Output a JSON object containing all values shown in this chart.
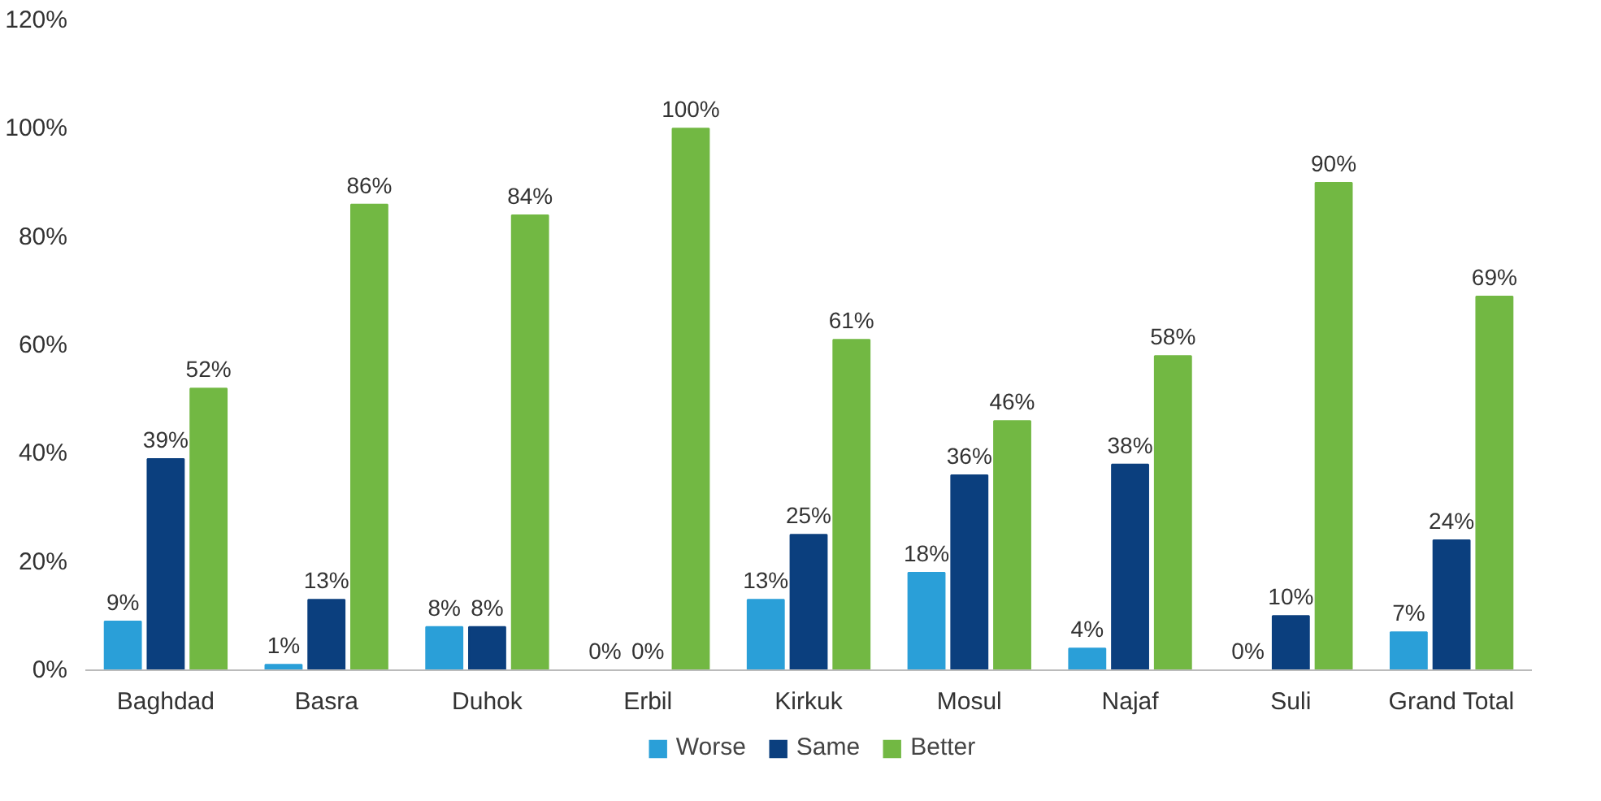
{
  "chart_data": {
    "type": "bar",
    "categories": [
      "Baghdad",
      "Basra",
      "Duhok",
      "Erbil",
      "Kirkuk",
      "Mosul",
      "Najaf",
      "Suli",
      "Grand Total"
    ],
    "series": [
      {
        "name": "Worse",
        "color": "#2a9fd8",
        "values": [
          9,
          1,
          8,
          0,
          13,
          18,
          4,
          0,
          7
        ],
        "value_labels": [
          "9%",
          "1%",
          "8%",
          "0%",
          "13%",
          "18%",
          "4%",
          "0%",
          "7%"
        ]
      },
      {
        "name": "Same",
        "color": "#0b3f7e",
        "values": [
          39,
          13,
          8,
          0,
          25,
          36,
          38,
          10,
          24
        ],
        "value_labels": [
          "39%",
          "13%",
          "8%",
          "0%",
          "25%",
          "36%",
          "38%",
          "10%",
          "24%"
        ]
      },
      {
        "name": "Better",
        "color": "#72b843",
        "values": [
          52,
          86,
          84,
          100,
          61,
          46,
          58,
          90,
          69
        ],
        "value_labels": [
          "52%",
          "86%",
          "84%",
          "100%",
          "61%",
          "46%",
          "58%",
          "90%",
          "69%"
        ]
      }
    ],
    "ylim": [
      0,
      120
    ],
    "yticks": [
      {
        "value": 0,
        "label": "0%"
      },
      {
        "value": 20,
        "label": "20%"
      },
      {
        "value": 40,
        "label": "40%"
      },
      {
        "value": 60,
        "label": "60%"
      },
      {
        "value": 80,
        "label": "80%"
      },
      {
        "value": 100,
        "label": "100%"
      },
      {
        "value": 120,
        "label": "120%"
      }
    ],
    "grid": false,
    "legend": "bottom"
  }
}
